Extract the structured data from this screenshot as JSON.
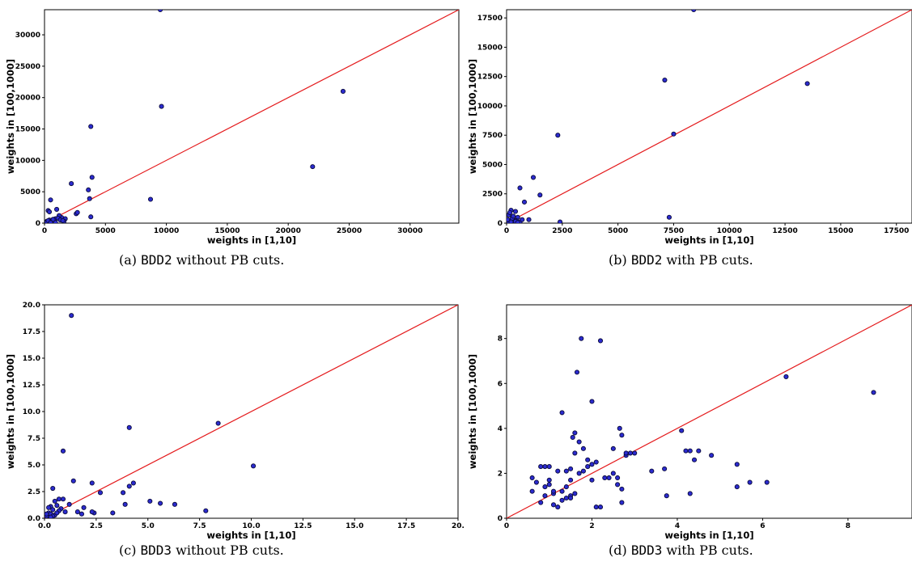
{
  "chart_data": [
    {
      "type": "scatter",
      "caption": {
        "prefix": "(a) ",
        "code": "BDD2",
        "suffix": " without PB cuts."
      },
      "xlabel": "weights in [1,10]",
      "ylabel": "weights in [100,1000]",
      "xlim": [
        0,
        34000
      ],
      "ylim": [
        0,
        34000
      ],
      "xticks": [
        0,
        5000,
        10000,
        15000,
        20000,
        25000,
        30000
      ],
      "xtick_labels": [
        "0",
        "5000",
        "10000",
        "15000",
        "20000",
        "25000",
        "30000"
      ],
      "yticks": [
        0,
        5000,
        10000,
        15000,
        20000,
        25000,
        30000
      ],
      "ytick_labels": [
        "0",
        "5000",
        "10000",
        "15000",
        "20000",
        "25000",
        "30000"
      ],
      "diagonal": true,
      "x": [
        9500,
        24500,
        9600,
        3800,
        22000,
        3900,
        2200,
        8700,
        3600,
        3700,
        2600,
        2700,
        3800,
        500,
        300,
        400,
        1000,
        1400,
        1700,
        1200,
        1600,
        800,
        600,
        900,
        400,
        500,
        700,
        300,
        200,
        1100,
        600,
        1300,
        100,
        200,
        900,
        1500,
        700,
        400,
        300,
        500
      ],
      "y": [
        34000,
        21000,
        18600,
        15400,
        9000,
        7300,
        6300,
        3800,
        5300,
        3900,
        1500,
        1700,
        1000,
        3700,
        2000,
        1800,
        2200,
        900,
        700,
        1200,
        300,
        600,
        400,
        700,
        500,
        200,
        300,
        100,
        300,
        800,
        200,
        500,
        100,
        200,
        100,
        400,
        600,
        300,
        400,
        100
      ]
    },
    {
      "type": "scatter",
      "caption": {
        "prefix": "(b) ",
        "code": "BDD2",
        "suffix": " with PB cuts."
      },
      "xlabel": "weights in [1,10]",
      "ylabel": "weights in [100,1000]",
      "xlim": [
        0,
        18200
      ],
      "ylim": [
        0,
        18200
      ],
      "xticks": [
        0,
        2500,
        5000,
        7500,
        10000,
        12500,
        15000,
        17500
      ],
      "xtick_labels": [
        "0",
        "2500",
        "5000",
        "7500",
        "10000",
        "12500",
        "15000",
        "17500"
      ],
      "yticks": [
        0,
        2500,
        5000,
        7500,
        10000,
        12500,
        15000,
        17500
      ],
      "ytick_labels": [
        "0",
        "2500",
        "5000",
        "7500",
        "10000",
        "12500",
        "15000",
        "17500"
      ],
      "diagonal": true,
      "x": [
        8400,
        7100,
        13500,
        7500,
        2300,
        1200,
        1500,
        600,
        800,
        1000,
        7300,
        2400,
        400,
        500,
        300,
        200,
        100,
        150,
        250,
        350,
        450,
        600,
        700,
        100,
        200,
        300,
        400,
        500,
        50,
        150
      ],
      "y": [
        18200,
        12200,
        11900,
        7600,
        7500,
        3900,
        2400,
        3000,
        1800,
        300,
        500,
        100,
        1000,
        500,
        300,
        1100,
        700,
        200,
        400,
        100,
        200,
        100,
        300,
        50,
        100,
        600,
        150,
        50,
        300,
        900
      ]
    },
    {
      "type": "scatter",
      "caption": {
        "prefix": "(c) ",
        "code": "BDD3",
        "suffix": " without PB cuts."
      },
      "xlabel": "weights in [1,10]",
      "ylabel": "weights in [100,1000]",
      "xlim": [
        0,
        20
      ],
      "ylim": [
        0,
        20
      ],
      "xticks": [
        0,
        2.5,
        5,
        7.5,
        10,
        12.5,
        15,
        17.5,
        20
      ],
      "xtick_labels": [
        "0.0",
        "2.5",
        "5.0",
        "7.5",
        "10.0",
        "12.5",
        "15.0",
        "17.5",
        "20."
      ],
      "yticks": [
        0,
        2.5,
        5,
        7.5,
        10,
        12.5,
        15,
        17.5,
        20
      ],
      "ytick_labels": [
        "0.0",
        "2.5",
        "5.0",
        "7.5",
        "10.0",
        "12.5",
        "15.0",
        "17.5",
        "20.0"
      ],
      "diagonal": true,
      "x": [
        1.3,
        4.1,
        8.4,
        10.1,
        0.9,
        1.4,
        2.3,
        4.3,
        4.1,
        3.8,
        2.7,
        0.4,
        0.7,
        0.9,
        1.2,
        5.1,
        5.6,
        6.3,
        7.8,
        3.9,
        3.3,
        2.4,
        2.3,
        1.8,
        1.6,
        1.9,
        0.2,
        0.3,
        0.5,
        0.6,
        0.4,
        0.2,
        0.1,
        0.8,
        1.0,
        0.3,
        0.5,
        0.7,
        0.2,
        0.4,
        0.6,
        0.1,
        0.3
      ],
      "y": [
        19.0,
        8.5,
        8.9,
        4.9,
        6.3,
        3.5,
        3.3,
        3.3,
        3.0,
        2.4,
        2.4,
        2.8,
        1.8,
        1.8,
        1.3,
        1.6,
        1.4,
        1.3,
        0.7,
        1.3,
        0.5,
        0.5,
        0.6,
        0.4,
        0.6,
        1.0,
        0.5,
        1.1,
        1.6,
        1.2,
        0.8,
        0.3,
        0.2,
        0.9,
        0.6,
        0.4,
        0.3,
        0.7,
        1.0,
        0.2,
        0.5,
        0.4,
        0.1
      ]
    },
    {
      "type": "scatter",
      "caption": {
        "prefix": "(d) ",
        "code": "BDD3",
        "suffix": " with PB cuts."
      },
      "xlabel": "weights in [1,10]",
      "ylabel": "weights in [100,1000]",
      "xlim": [
        0,
        9.5
      ],
      "ylim": [
        0,
        9.5
      ],
      "xticks": [
        0,
        2,
        4,
        6,
        8
      ],
      "xtick_labels": [
        "0",
        "2",
        "4",
        "6",
        "8"
      ],
      "yticks": [
        0,
        2,
        4,
        6,
        8
      ],
      "ytick_labels": [
        "0",
        "2",
        "4",
        "6",
        "8"
      ],
      "diagonal": true,
      "x": [
        1.75,
        2.2,
        1.65,
        6.55,
        8.6,
        1.3,
        2.0,
        4.3,
        2.65,
        4.1,
        4.4,
        4.8,
        4.5,
        1.55,
        1.6,
        1.7,
        1.8,
        1.9,
        2.5,
        2.7,
        2.9,
        2.0,
        1.5,
        1.4,
        1.2,
        1.0,
        0.9,
        0.8,
        0.6,
        0.7,
        1.1,
        1.3,
        2.2,
        2.4,
        2.6,
        3.0,
        3.4,
        3.7,
        4.2,
        4.3,
        5.4,
        5.7,
        6.1,
        5.4,
        3.75,
        2.7,
        2.8,
        1.5,
        1.6,
        1.7,
        1.9,
        2.1,
        2.3,
        2.5,
        2.6,
        2.7,
        2.8,
        1.0,
        1.1,
        0.9,
        1.2,
        1.4,
        1.5,
        1.6,
        1.8,
        2.0,
        2.1,
        0.6,
        0.8,
        0.9,
        1.0,
        1.1,
        1.3,
        1.4,
        1.5
      ],
      "y": [
        8.0,
        7.9,
        6.5,
        6.3,
        5.6,
        4.7,
        5.2,
        3.0,
        4.0,
        3.9,
        2.6,
        2.8,
        3.0,
        3.6,
        3.8,
        3.4,
        3.1,
        2.6,
        3.1,
        3.7,
        2.9,
        2.4,
        2.2,
        2.1,
        2.1,
        2.3,
        2.3,
        2.3,
        1.8,
        1.6,
        1.1,
        0.8,
        0.5,
        1.8,
        1.5,
        2.9,
        2.1,
        2.2,
        3.0,
        1.1,
        2.4,
        1.6,
        1.6,
        1.4,
        1.0,
        0.7,
        2.8,
        1.7,
        2.9,
        2.0,
        2.3,
        2.5,
        1.8,
        2.0,
        1.8,
        1.3,
        2.9,
        1.5,
        1.2,
        1.4,
        0.5,
        0.9,
        1.0,
        1.1,
        2.1,
        1.7,
        0.5,
        1.2,
        0.7,
        1.0,
        1.7,
        0.6,
        1.2,
        1.4,
        0.9
      ]
    }
  ]
}
